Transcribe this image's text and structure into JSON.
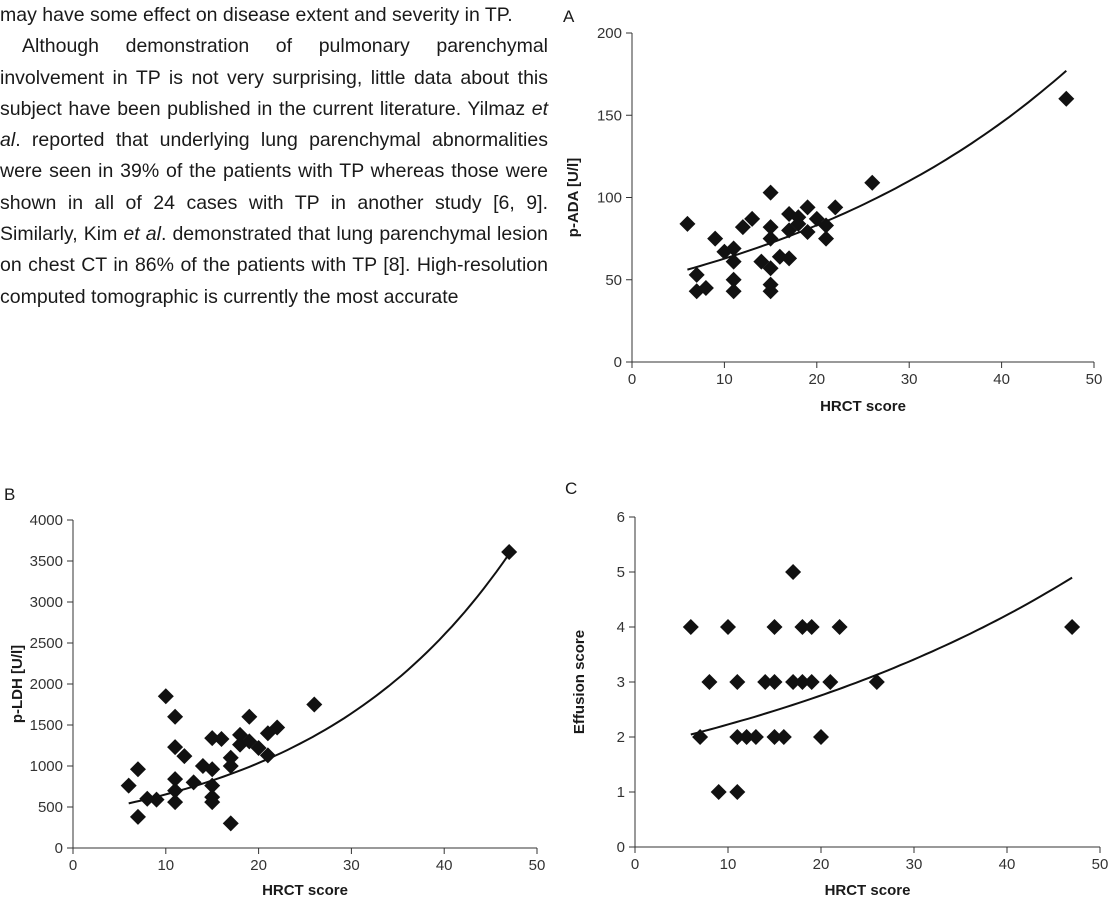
{
  "article_text": {
    "line1": "may have some effect on disease extent and severity in TP.",
    "para2_a": "Although demonstration of pulmonary parenchymal involvement in TP is not very surprising, little data about this subject have been published in the current literature. Yilmaz ",
    "para2_etal1": "et al",
    "para2_b": ". reported that underlying lung parenchymal abnormalities were seen in 39% of the patients with TP whereas those were shown in all of 24 cases with TP in another study [6, 9]. Similarly, Kim ",
    "para2_etal2": "et al",
    "para2_c": ". demonstrated that lung parenchymal lesion on chest CT in 86% of the patients with TP [8]. High-resolution computed tomographic is currently the most accurate"
  },
  "chart_data": [
    {
      "panel": "A",
      "type": "scatter",
      "xlabel": "HRCT score",
      "ylabel": "p-ADA [U/l]",
      "xlim": [
        0,
        50
      ],
      "ylim": [
        0,
        200
      ],
      "xticks": [
        0,
        10,
        20,
        30,
        40,
        50
      ],
      "yticks": [
        0,
        50,
        100,
        150,
        200
      ],
      "fit": {
        "kind": "exponential",
        "a": 47.5,
        "b": 0.028
      },
      "points": [
        [
          6,
          84
        ],
        [
          7,
          53
        ],
        [
          7,
          43
        ],
        [
          8,
          45
        ],
        [
          9,
          75
        ],
        [
          10,
          67
        ],
        [
          11,
          69
        ],
        [
          11,
          61
        ],
        [
          11,
          50
        ],
        [
          11,
          43
        ],
        [
          12,
          82
        ],
        [
          13,
          87
        ],
        [
          14,
          61
        ],
        [
          15,
          103
        ],
        [
          15,
          82
        ],
        [
          15,
          75
        ],
        [
          15,
          57
        ],
        [
          15,
          47
        ],
        [
          15,
          43
        ],
        [
          16,
          64
        ],
        [
          17,
          90
        ],
        [
          17,
          80
        ],
        [
          17,
          63
        ],
        [
          18,
          88
        ],
        [
          18,
          84
        ],
        [
          19,
          94
        ],
        [
          19,
          79
        ],
        [
          20,
          87
        ],
        [
          21,
          83
        ],
        [
          21,
          75
        ],
        [
          22,
          94
        ],
        [
          26,
          109
        ],
        [
          47,
          160
        ]
      ]
    },
    {
      "panel": "B",
      "type": "scatter",
      "xlabel": "HRCT score",
      "ylabel": "p-LDH [U/l]",
      "xlim": [
        0,
        50
      ],
      "ylim": [
        0,
        4000
      ],
      "xticks": [
        0,
        10,
        20,
        30,
        40,
        50
      ],
      "yticks": [
        0,
        500,
        1000,
        1500,
        2000,
        2500,
        3000,
        3500,
        4000
      ],
      "fit": {
        "kind": "exponential",
        "a": 413,
        "b": 0.046
      },
      "points": [
        [
          6,
          760
        ],
        [
          7,
          960
        ],
        [
          7,
          380
        ],
        [
          8,
          600
        ],
        [
          9,
          590
        ],
        [
          10,
          1850
        ],
        [
          11,
          1600
        ],
        [
          11,
          1230
        ],
        [
          11,
          840
        ],
        [
          11,
          700
        ],
        [
          11,
          560
        ],
        [
          12,
          1120
        ],
        [
          13,
          800
        ],
        [
          14,
          1000
        ],
        [
          15,
          1340
        ],
        [
          15,
          960
        ],
        [
          15,
          760
        ],
        [
          15,
          620
        ],
        [
          15,
          560
        ],
        [
          16,
          1330
        ],
        [
          17,
          1000
        ],
        [
          17,
          300
        ],
        [
          17,
          1100
        ],
        [
          18,
          1380
        ],
        [
          18,
          1260
        ],
        [
          19,
          1600
        ],
        [
          19,
          1300
        ],
        [
          20,
          1220
        ],
        [
          21,
          1400
        ],
        [
          21,
          1130
        ],
        [
          22,
          1470
        ],
        [
          26,
          1750
        ],
        [
          47,
          3610
        ]
      ]
    },
    {
      "panel": "C",
      "type": "scatter",
      "xlabel": "HRCT score",
      "ylabel": "Effusion score",
      "xlim": [
        0,
        50
      ],
      "ylim": [
        0,
        6
      ],
      "xticks": [
        0,
        10,
        20,
        30,
        40,
        50
      ],
      "yticks": [
        0,
        1,
        2,
        3,
        4,
        5,
        6
      ],
      "fit": {
        "kind": "exponential",
        "a": 1.8,
        "b": 0.0213
      },
      "points": [
        [
          6,
          4
        ],
        [
          7,
          2
        ],
        [
          8,
          3
        ],
        [
          9,
          1
        ],
        [
          10,
          4
        ],
        [
          11,
          3
        ],
        [
          11,
          2
        ],
        [
          11,
          1
        ],
        [
          12,
          2
        ],
        [
          13,
          2
        ],
        [
          14,
          3
        ],
        [
          15,
          4
        ],
        [
          15,
          3
        ],
        [
          15,
          2
        ],
        [
          16,
          2
        ],
        [
          17,
          5
        ],
        [
          17,
          3
        ],
        [
          18,
          4
        ],
        [
          18,
          3
        ],
        [
          19,
          4
        ],
        [
          19,
          3
        ],
        [
          20,
          2
        ],
        [
          21,
          3
        ],
        [
          22,
          4
        ],
        [
          26,
          3
        ],
        [
          47,
          4
        ]
      ]
    }
  ]
}
